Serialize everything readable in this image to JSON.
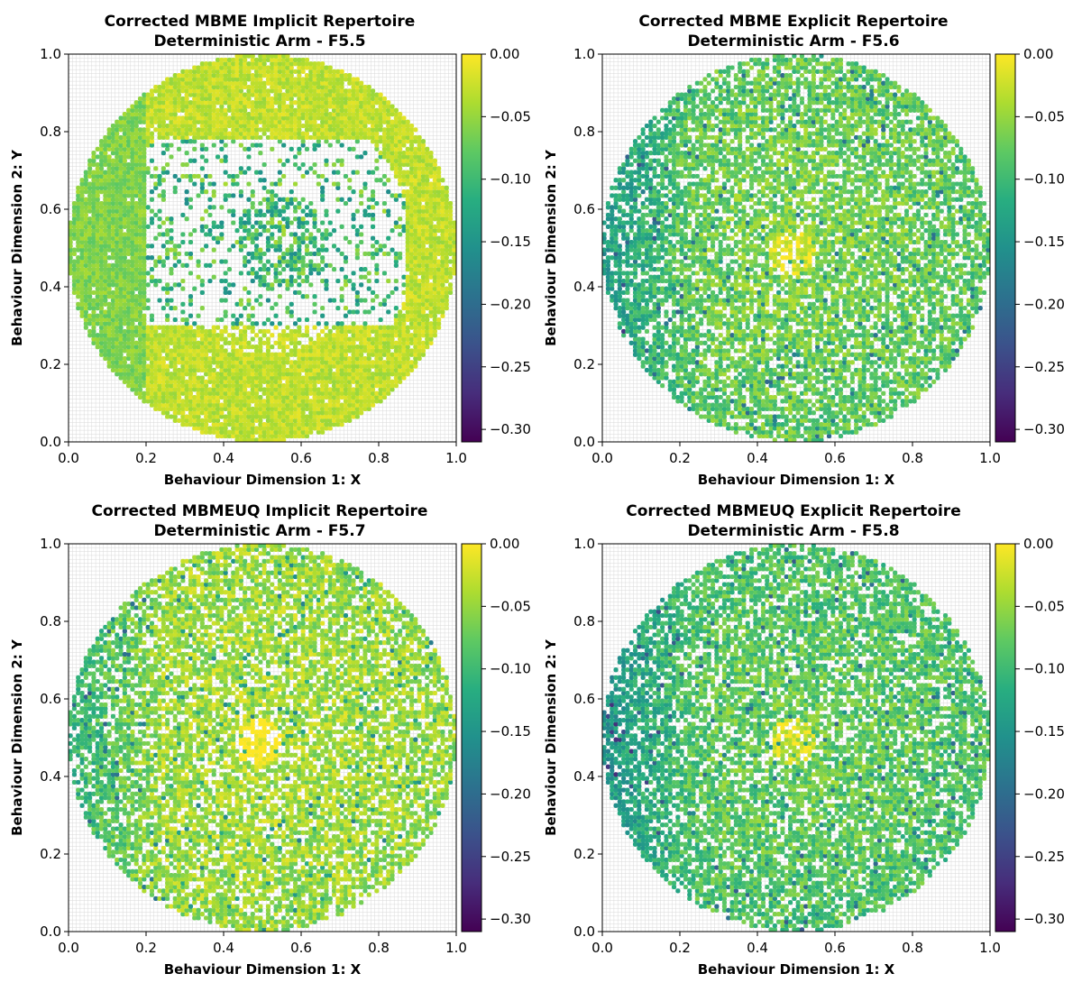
{
  "colormap": {
    "name": "viridis",
    "stops": [
      "#440154",
      "#472d7b",
      "#3b528b",
      "#2c728e",
      "#21918c",
      "#28ae80",
      "#5ec962",
      "#addc30",
      "#fde725"
    ]
  },
  "chart_data": [
    {
      "type": "scatter",
      "title_line1": "Corrected MBME Implicit Repertoire",
      "title_line2": "Deterministic Arm - F5.5",
      "xlabel": "Behaviour Dimension 1: X",
      "ylabel": "Behaviour Dimension 2: Y",
      "xlim": [
        0.0,
        1.0
      ],
      "ylim": [
        0.0,
        1.0
      ],
      "x_ticks": [
        "0.0",
        "0.2",
        "0.4",
        "0.6",
        "0.8",
        "1.0"
      ],
      "y_ticks": [
        "0.0",
        "0.2",
        "0.4",
        "0.6",
        "0.8",
        "1.0"
      ],
      "grid": true,
      "colorbar": {
        "range": [
          -0.31,
          0.0
        ],
        "ticks": [
          "0.00",
          "−0.05",
          "−0.10",
          "−0.15",
          "−0.20",
          "−0.25",
          "−0.30"
        ],
        "tick_values": [
          0.0,
          -0.05,
          -0.1,
          -0.15,
          -0.2,
          -0.25,
          -0.3
        ]
      },
      "distribution": {
        "description": "disk of fitness values; outer ring near -0.03, central ring/blob with scattered darker points",
        "center": [
          0.5,
          0.5
        ],
        "radius": 0.5,
        "outer_fitness": -0.03,
        "inner_fitness": -0.1,
        "sparse_region": {
          "x": [
            0.2,
            0.87
          ],
          "y": [
            0.3,
            0.78
          ]
        },
        "point_count_estimate": 6000
      }
    },
    {
      "type": "scatter",
      "title_line1": "Corrected MBME Explicit Repertoire",
      "title_line2": "Deterministic Arm - F5.6",
      "xlabel": "Behaviour Dimension 1: X",
      "ylabel": "Behaviour Dimension 2: Y",
      "xlim": [
        0.0,
        1.0
      ],
      "ylim": [
        0.0,
        1.0
      ],
      "x_ticks": [
        "0.0",
        "0.2",
        "0.4",
        "0.6",
        "0.8",
        "1.0"
      ],
      "y_ticks": [
        "0.0",
        "0.2",
        "0.4",
        "0.6",
        "0.8",
        "1.0"
      ],
      "grid": true,
      "colorbar": {
        "range": [
          -0.31,
          0.0
        ],
        "ticks": [
          "0.00",
          "−0.05",
          "−0.10",
          "−0.15",
          "−0.20",
          "−0.25",
          "−0.30"
        ],
        "tick_values": [
          0.0,
          -0.05,
          -0.1,
          -0.15,
          -0.2,
          -0.25,
          -0.3
        ]
      },
      "distribution": {
        "description": "uniform disk, greener toward left edge, bright spot near center",
        "center": [
          0.5,
          0.5
        ],
        "radius": 0.5,
        "outer_fitness": -0.08,
        "inner_fitness": -0.06,
        "point_count_estimate": 5000
      }
    },
    {
      "type": "scatter",
      "title_line1": "Corrected MBMEUQ Implicit Repertoire",
      "title_line2": "Deterministic Arm - F5.7",
      "xlabel": "Behaviour Dimension 1: X",
      "ylabel": "Behaviour Dimension 2: Y",
      "xlim": [
        0.0,
        1.0
      ],
      "ylim": [
        0.0,
        1.0
      ],
      "x_ticks": [
        "0.0",
        "0.2",
        "0.4",
        "0.6",
        "0.8",
        "1.0"
      ],
      "y_ticks": [
        "0.0",
        "0.2",
        "0.4",
        "0.6",
        "0.8",
        "1.0"
      ],
      "grid": true,
      "colorbar": {
        "range": [
          -0.31,
          0.0
        ],
        "ticks": [
          "0.00",
          "−0.05",
          "−0.10",
          "−0.15",
          "−0.20",
          "−0.25",
          "−0.30"
        ],
        "tick_values": [
          0.0,
          -0.05,
          -0.1,
          -0.15,
          -0.2,
          -0.25,
          -0.3
        ]
      },
      "distribution": {
        "description": "disk with bright yellow band, darker scattered points on left side",
        "center": [
          0.5,
          0.5
        ],
        "radius": 0.5,
        "outer_fitness": -0.05,
        "inner_fitness": -0.04,
        "point_count_estimate": 4500
      }
    },
    {
      "type": "scatter",
      "title_line1": "Corrected MBMEUQ Explicit Repertoire",
      "title_line2": "Deterministic Arm - F5.8",
      "xlabel": "Behaviour Dimension 1: X",
      "ylabel": "Behaviour Dimension 2: Y",
      "xlim": [
        0.0,
        1.0
      ],
      "ylim": [
        0.0,
        1.0
      ],
      "x_ticks": [
        "0.0",
        "0.2",
        "0.4",
        "0.6",
        "0.8",
        "1.0"
      ],
      "y_ticks": [
        "0.0",
        "0.2",
        "0.4",
        "0.6",
        "0.8",
        "1.0"
      ],
      "grid": true,
      "colorbar": {
        "range": [
          -0.31,
          0.0
        ],
        "ticks": [
          "0.00",
          "−0.05",
          "−0.10",
          "−0.15",
          "−0.20",
          "−0.25",
          "−0.30"
        ],
        "tick_values": [
          0.0,
          -0.05,
          -0.1,
          -0.15,
          -0.2,
          -0.25,
          -0.3
        ]
      },
      "distribution": {
        "description": "dense uniform disk, teal-green toward left edge, yellow spot near center",
        "center": [
          0.5,
          0.5
        ],
        "radius": 0.5,
        "outer_fitness": -0.09,
        "inner_fitness": -0.07,
        "point_count_estimate": 5500
      }
    }
  ]
}
